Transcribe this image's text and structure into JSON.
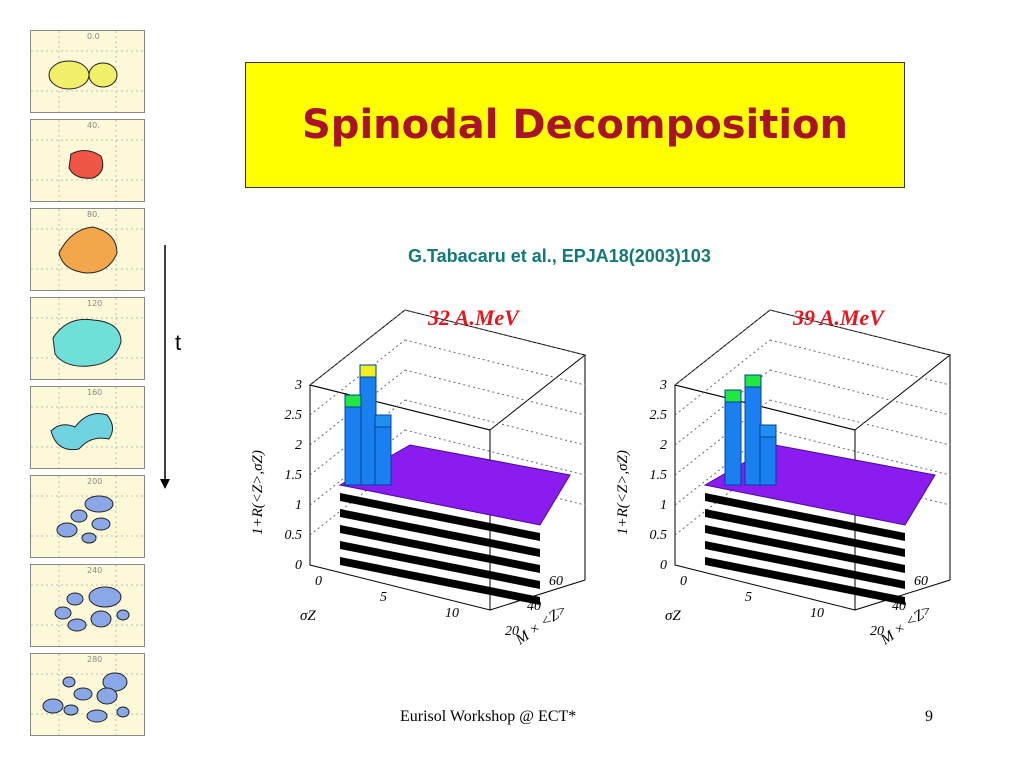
{
  "title": "Spinodal Decomposition",
  "citation": "G.Tabacaru  et al., EPJA18(2003)103",
  "time_axis_label": "t",
  "frames": [
    {
      "label": "0.0"
    },
    {
      "label": "40."
    },
    {
      "label": "80."
    },
    {
      "label": "120"
    },
    {
      "label": "160"
    },
    {
      "label": "200"
    },
    {
      "label": "240"
    },
    {
      "label": "280"
    }
  ],
  "plots": [
    {
      "title": "32 A.MeV",
      "ylabel": "1+R(<Z>,σZ)",
      "xlabel": "σZ",
      "zlabel": "M × <Z>",
      "y_ticks": [
        "0",
        "0.5",
        "1",
        "1.5",
        "2",
        "2.5",
        "3"
      ],
      "x_ticks": [
        "0",
        "5",
        "10"
      ],
      "z_ticks": [
        "20",
        "40",
        "60"
      ]
    },
    {
      "title": "39 A.MeV",
      "ylabel": "1+R(<Z>,σZ)",
      "xlabel": "σZ",
      "zlabel": "M × <Z>",
      "y_ticks": [
        "0",
        "0.5",
        "1",
        "1.5",
        "2",
        "2.5",
        "3"
      ],
      "x_ticks": [
        "0",
        "5",
        "10"
      ],
      "z_ticks": [
        "20",
        "40",
        "60"
      ]
    }
  ],
  "footer": "Eurisol Workshop @ ECT*",
  "page_number": "9",
  "colors": {
    "title_bg": "#ffff00",
    "title_text": "#a8132a",
    "citation": "#117a78",
    "bars": "#8a1cf0"
  }
}
